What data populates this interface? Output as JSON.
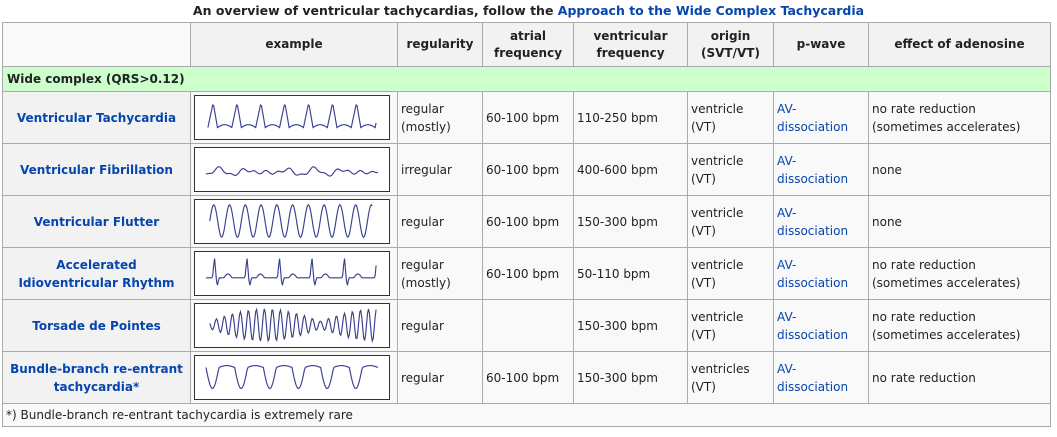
{
  "caption": {
    "prefix": "An overview of ventricular tachycardias, follow the ",
    "link": "Approach to the Wide Complex Tachycardia"
  },
  "headers": {
    "example": "example",
    "regularity": "regularity",
    "atrial": "atrial frequency",
    "ventricular": "ventricular frequency",
    "origin": "origin (SVT/VT)",
    "pwave": "p-wave",
    "adenosine": "effect of adenosine"
  },
  "section": "Wide complex (QRS>0.12)",
  "rows": [
    {
      "name": "Ventricular Tachycardia",
      "wave": "vt-trace",
      "regularity": "regular (mostly)",
      "atrial": "60-100 bpm",
      "ventricular": "110-250 bpm",
      "origin": "ventricle (VT)",
      "pwave": "AV-dissociation",
      "adenosine": "no rate reduction (sometimes accelerates)"
    },
    {
      "name": "Ventricular Fibrillation",
      "wave": "vf-trace",
      "regularity": "irregular",
      "atrial": "60-100 bpm",
      "ventricular": "400-600 bpm",
      "origin": "ventricle (VT)",
      "pwave": "AV-dissociation",
      "adenosine": "none"
    },
    {
      "name": "Ventricular Flutter",
      "wave": "flutter-trace",
      "regularity": "regular",
      "atrial": "60-100 bpm",
      "ventricular": "150-300 bpm",
      "origin": "ventricle (VT)",
      "pwave": "AV-dissociation",
      "adenosine": "none"
    },
    {
      "name": "Accelerated Idioventricular Rhythm",
      "wave": "aivr-trace",
      "regularity": "regular (mostly)",
      "atrial": "60-100 bpm",
      "ventricular": "50-110 bpm",
      "origin": "ventricle (VT)",
      "pwave": "AV-dissociation",
      "adenosine": "no rate reduction (sometimes accelerates)"
    },
    {
      "name": "Torsade de Pointes",
      "wave": "torsade-trace",
      "regularity": "regular",
      "atrial": "",
      "ventricular": "150-300 bpm",
      "origin": "ventricle (VT)",
      "pwave": "AV-dissociation",
      "adenosine": "no rate reduction (sometimes accelerates)"
    },
    {
      "name": "Bundle-branch re-entrant tachycardia*",
      "wave": "bbr-trace",
      "regularity": "regular",
      "atrial": "60-100 bpm",
      "ventricular": "150-300 bpm",
      "origin": "ventricles (VT)",
      "pwave": "AV-dissociation",
      "adenosine": "no rate reduction"
    }
  ],
  "footnote": "*) Bundle-branch re-entrant tachycardia is extremely rare",
  "colors": {
    "link": "#0645ad",
    "section_bg": "#ccffcc",
    "trace": "#3a3f8f"
  }
}
